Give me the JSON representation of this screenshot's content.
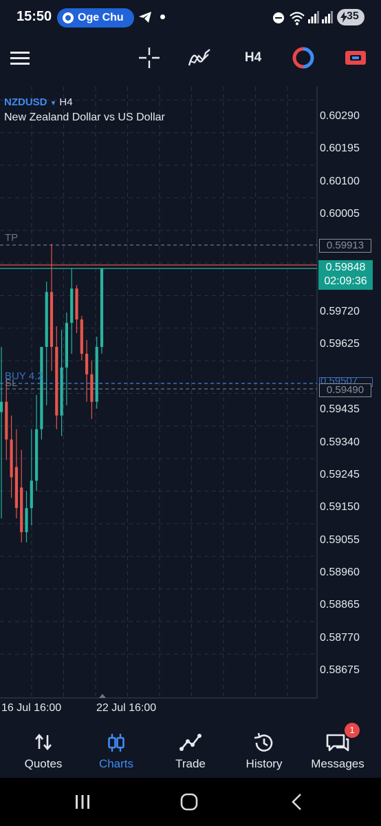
{
  "status_bar": {
    "time": "15:50",
    "notification_chip": "Oge Chu",
    "battery": "35",
    "icons": [
      "telegram-send-icon",
      "dot-icon",
      "dnd-icon",
      "wifi-icon",
      "signal-icon",
      "battery-icon"
    ]
  },
  "toolbar": {
    "timeframe": "H4",
    "icons": [
      "menu-icon",
      "crosshair-icon",
      "indicators-icon",
      "objects-icon",
      "trade-icon"
    ],
    "colors": {
      "objects_red": "#e7484a",
      "objects_blue": "#3e8cf2",
      "trade_red": "#e7484a"
    }
  },
  "chart": {
    "symbol": "NZDUSD",
    "timeframe": "H4",
    "description": "New Zealand Dollar vs US Dollar",
    "price_labels": [
      "0.60290",
      "0.60195",
      "0.60100",
      "0.60005",
      "0.59720",
      "0.59625",
      "0.59435",
      "0.59340",
      "0.59245",
      "0.59150",
      "0.59055",
      "0.58960",
      "0.58865",
      "0.58770",
      "0.58675"
    ],
    "time_labels": [
      "16 Jul 16:00",
      "22 Jul 16:00"
    ],
    "tp": {
      "label": "TP",
      "price": "0.59913"
    },
    "current": {
      "price": "0.59848",
      "countdown": "02:09:36"
    },
    "buy": {
      "label": "BUY 4.2",
      "price": "0.59507"
    },
    "sl": {
      "label": "SL",
      "price": "0.59490"
    },
    "colors": {
      "background": "#101623",
      "bull": "#2bb3a0",
      "bear": "#e5564e",
      "grid": "#2a3140",
      "buy_line": "#3e6fbd",
      "current_price_box": "#149b8c"
    },
    "candles_ohlc": [
      [
        0.5943,
        0.5962,
        0.5912,
        0.5946
      ],
      [
        0.5946,
        0.5953,
        0.5929,
        0.5935
      ],
      [
        0.5935,
        0.5942,
        0.5918,
        0.5924
      ],
      [
        0.5927,
        0.5938,
        0.5912,
        0.5915
      ],
      [
        0.5921,
        0.5932,
        0.5905,
        0.5908
      ],
      [
        0.5908,
        0.592,
        0.5905,
        0.5915
      ],
      [
        0.5915,
        0.5938,
        0.591,
        0.5923
      ],
      [
        0.5923,
        0.5948,
        0.592,
        0.5938
      ],
      [
        0.5938,
        0.5962,
        0.5935,
        0.5962
      ],
      [
        0.5962,
        0.5981,
        0.5945,
        0.5978
      ],
      [
        0.5978,
        0.5992,
        0.5955,
        0.5962
      ],
      [
        0.5962,
        0.5968,
        0.5938,
        0.5942
      ],
      [
        0.5942,
        0.5967,
        0.5936,
        0.5956
      ],
      [
        0.5956,
        0.5972,
        0.5945,
        0.5969
      ],
      [
        0.5969,
        0.5985,
        0.596,
        0.5979
      ],
      [
        0.5979,
        0.598,
        0.5966,
        0.597
      ],
      [
        0.597,
        0.5971,
        0.5958,
        0.596
      ],
      [
        0.596,
        0.5964,
        0.5946,
        0.5954
      ],
      [
        0.5954,
        0.5958,
        0.5941,
        0.5946
      ],
      [
        0.5946,
        0.5965,
        0.5944,
        0.5962
      ],
      [
        0.5962,
        0.5985,
        0.596,
        0.59848
      ]
    ]
  },
  "bottom_nav": {
    "items": [
      {
        "label": "Quotes",
        "icon": "quotes-arrows-icon"
      },
      {
        "label": "Charts",
        "icon": "charts-candles-icon"
      },
      {
        "label": "Trade",
        "icon": "trade-line-icon"
      },
      {
        "label": "History",
        "icon": "history-clock-icon"
      },
      {
        "label": "Messages",
        "icon": "messages-chat-icon"
      }
    ],
    "active": "Charts",
    "messages_badge": "1"
  },
  "system_nav": {
    "icons": [
      "recents-icon",
      "home-icon",
      "back-icon"
    ]
  }
}
